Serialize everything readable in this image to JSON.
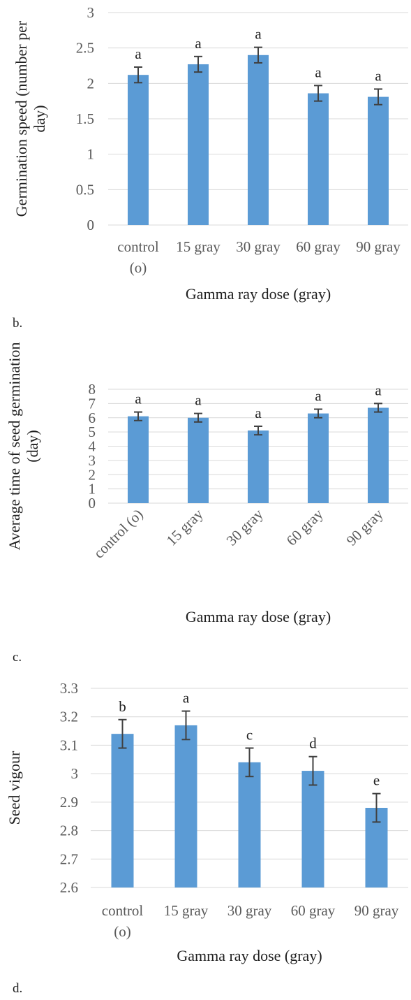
{
  "chart_data": [
    {
      "type": "bar",
      "panel_label": "b.",
      "categories": [
        "control (o)",
        "15 gray",
        "30 gray",
        "60 gray",
        "90 gray"
      ],
      "values": [
        2.12,
        2.27,
        2.4,
        1.86,
        1.81
      ],
      "error": [
        0.11,
        0.11,
        0.11,
        0.11,
        0.11
      ],
      "significance": [
        "a",
        "a",
        "a",
        "a",
        "a"
      ],
      "xlabel": "Gamma ray dose (gray)",
      "ylabel": "Germination speed (number per day)",
      "ylim": [
        0,
        3
      ],
      "yticks": [
        "0",
        "0.5",
        "1",
        "1.5",
        "2",
        "2.5",
        "3"
      ],
      "grid": true,
      "color": "#5b9bd5"
    },
    {
      "type": "bar",
      "panel_label": "c.",
      "categories": [
        "control (o)",
        "15 gray",
        "30 gray",
        "60 gray",
        "90 gray"
      ],
      "values": [
        6.1,
        6.0,
        5.1,
        6.3,
        6.7
      ],
      "error": [
        0.3,
        0.3,
        0.3,
        0.3,
        0.3
      ],
      "significance": [
        "a",
        "a",
        "a",
        "a",
        "a"
      ],
      "xlabel": "Gamma ray dose (gray)",
      "ylabel": "Average time of seed germination (day)",
      "ylim": [
        0,
        8
      ],
      "yticks": [
        "0",
        "1",
        "2",
        "3",
        "4",
        "5",
        "6",
        "7",
        "8"
      ],
      "grid": true,
      "color": "#5b9bd5"
    },
    {
      "type": "bar",
      "panel_label": "d.",
      "categories": [
        "control (o)",
        "15 gray",
        "30 gray",
        "60 gray",
        "90 gray"
      ],
      "values": [
        3.14,
        3.17,
        3.04,
        3.01,
        2.88
      ],
      "error": [
        0.05,
        0.05,
        0.05,
        0.05,
        0.05
      ],
      "significance": [
        "b",
        "a",
        "c",
        "d",
        "e"
      ],
      "xlabel": "Gamma ray dose (gray)",
      "ylabel": "Seed vigour",
      "ylim": [
        2.6,
        3.3
      ],
      "yticks": [
        "2.6",
        "2.7",
        "2.8",
        "2.9",
        "3",
        "3.1",
        "3.2",
        "3.3"
      ],
      "grid": true,
      "color": "#5b9bd5"
    }
  ]
}
